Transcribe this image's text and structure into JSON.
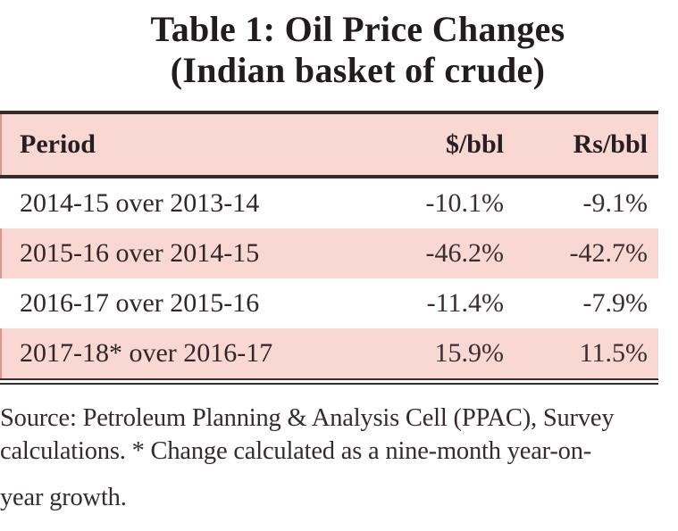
{
  "title": {
    "line1": "Table 1: Oil Price Changes",
    "line2": "(Indian basket of  crude)"
  },
  "table": {
    "columns": {
      "period": "Period",
      "usd": "$/bbl",
      "rs": "Rs/bbl"
    },
    "rows": [
      {
        "period": "2014-15 over 2013-14",
        "usd": "-10.1%",
        "rs": "-9.1%"
      },
      {
        "period": "2015-16 over 2014-15",
        "usd": "-46.2%",
        "rs": "-42.7%"
      },
      {
        "period": "2016-17 over 2015-16",
        "usd": "-11.4%",
        "rs": "-7.9%"
      },
      {
        "period": "2017-18* over 2016-17",
        "usd": "15.9%",
        "rs": "11.5%"
      }
    ]
  },
  "source": {
    "lines": [
      "Source: Petroleum Planning & Analysis Cell (PPAC), Survey",
      "calculations. * Change calculated as a nine-month year-on-",
      "year growth."
    ],
    "full_text": "Source: Petroleum Planning & Analysis Cell (PPAC), Survey calculations. * Change calculated as a nine-month year-on-year growth."
  },
  "colors": {
    "band_pink": "#f9d7d2",
    "rule_dark": "#362b29",
    "text": "#2e2829",
    "scan_edge_red": "#dd968d"
  }
}
